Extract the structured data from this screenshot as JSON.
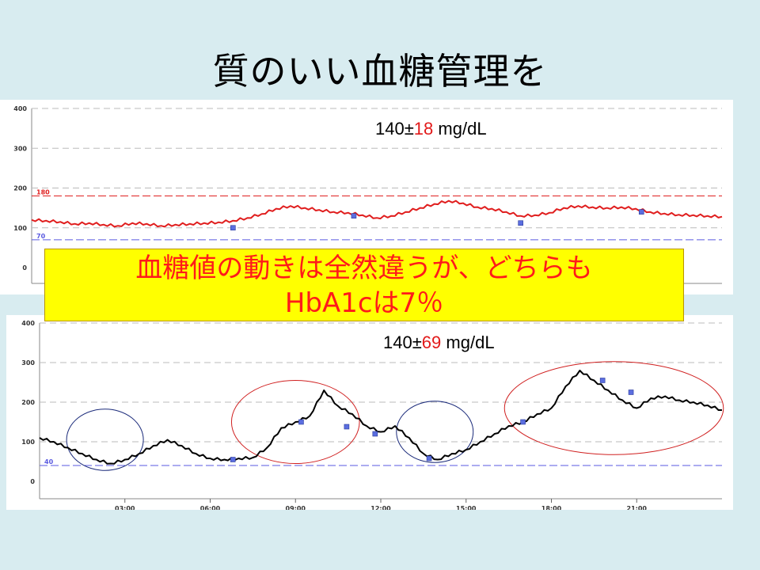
{
  "slide_title": "質のいい血糖管理を",
  "banner": {
    "line1": "血糖値の動きは全然違うが、どちらも",
    "line2": "HbA1cは7％"
  },
  "chart_data": [
    {
      "type": "line",
      "stat": {
        "mean": "140",
        "pm": "±",
        "sd": "18",
        "unit": "mg/dL"
      },
      "yticks": [
        0,
        100,
        200,
        300,
        400
      ],
      "ylim": [
        0,
        400
      ],
      "xlim": [
        0,
        24
      ],
      "upper_ref": {
        "label": "180",
        "value": 180,
        "color": "#e02020"
      },
      "lower_ref": {
        "label": "70",
        "value": 70,
        "color": "#5a5ae0"
      },
      "line_color": "#e01e1e",
      "series": [
        {
          "x": [
            0,
            0.5,
            1,
            1.5,
            2,
            2.5,
            3,
            3.5,
            4,
            4.5,
            5,
            5.5,
            6,
            6.5,
            7,
            7.5,
            8,
            8.5,
            9,
            9.5,
            10,
            10.5,
            11,
            11.5,
            12,
            12.5,
            13,
            13.5,
            14,
            14.5,
            15,
            15.5,
            16,
            16.5,
            17,
            17.5,
            18,
            18.5,
            19,
            19.5,
            20,
            20.5,
            21,
            21.5,
            22,
            22.5,
            23,
            23.5,
            24
          ],
          "y": [
            120,
            118,
            115,
            110,
            112,
            108,
            105,
            112,
            110,
            105,
            108,
            110,
            112,
            114,
            118,
            125,
            135,
            148,
            155,
            150,
            145,
            140,
            138,
            132,
            125,
            130,
            140,
            150,
            160,
            168,
            162,
            152,
            148,
            140,
            130,
            132,
            138,
            150,
            155,
            152,
            150,
            152,
            148,
            140,
            136,
            133,
            132,
            130,
            128
          ]
        }
      ],
      "markers": {
        "x": [
          7.0,
          11.2,
          17.0,
          21.2
        ],
        "y": [
          100,
          130,
          112,
          140
        ]
      }
    },
    {
      "type": "line",
      "stat": {
        "mean": "140",
        "pm": "±",
        "sd": "69",
        "unit": "mg/dL"
      },
      "yticks": [
        0,
        100,
        200,
        300,
        400
      ],
      "ylim": [
        0,
        400
      ],
      "xlim": [
        0,
        24
      ],
      "xticks": [
        "03:00",
        "06:00",
        "09:00",
        "12:00",
        "15:00",
        "18:00",
        "21:00"
      ],
      "xtick_values": [
        3,
        6,
        9,
        12,
        15,
        18,
        21
      ],
      "lower_ref": {
        "label": "40",
        "value": 40,
        "color": "#5a5ae0"
      },
      "line_color": "#000000",
      "series": [
        {
          "x": [
            0,
            0.5,
            1,
            1.5,
            2,
            2.5,
            3,
            3.5,
            4,
            4.5,
            5,
            5.5,
            6,
            6.5,
            7,
            7.5,
            8,
            8.5,
            9,
            9.5,
            10,
            10.5,
            11,
            11.5,
            12,
            12.5,
            13,
            13.5,
            14,
            14.5,
            15,
            15.5,
            16,
            16.5,
            17,
            17.5,
            18,
            18.5,
            19,
            19.5,
            20,
            20.5,
            21,
            21.5,
            22,
            22.5,
            23,
            23.5,
            24
          ],
          "y": [
            110,
            100,
            85,
            70,
            55,
            45,
            55,
            70,
            90,
            105,
            90,
            70,
            58,
            55,
            58,
            60,
            85,
            135,
            150,
            165,
            230,
            190,
            170,
            140,
            125,
            140,
            110,
            70,
            55,
            70,
            80,
            100,
            120,
            140,
            150,
            170,
            185,
            240,
            280,
            255,
            230,
            205,
            185,
            210,
            215,
            205,
            200,
            192,
            180
          ]
        }
      ],
      "markers": {
        "x": [
          6.8,
          9.2,
          10.8,
          11.8,
          13.7,
          17.0,
          19.8,
          20.8
        ],
        "y": [
          55,
          150,
          138,
          120,
          58,
          150,
          255,
          225
        ]
      },
      "ellipses": [
        {
          "cx": 2.3,
          "cy": 105,
          "rx": 1.35,
          "ry": 155,
          "color": "#1a2a7a"
        },
        {
          "cx": 9.0,
          "cy": 150,
          "rx": 2.25,
          "ry": 210,
          "color": "#d02020"
        },
        {
          "cx": 13.9,
          "cy": 125,
          "rx": 1.35,
          "ry": 155,
          "color": "#1a2a7a"
        },
        {
          "cx": 20.2,
          "cy": 185,
          "rx": 3.85,
          "ry": 235,
          "color": "#d02020"
        }
      ]
    }
  ]
}
